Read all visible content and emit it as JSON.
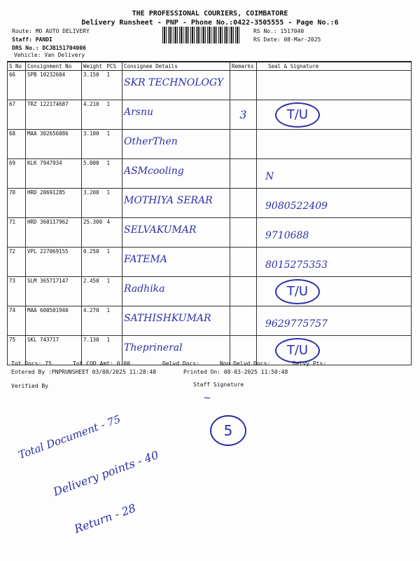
{
  "header": {
    "company": "THE PROFESSIONAL COURIERS, COIMBATORE",
    "subtitle": "Delivery Runsheet - PNP - Phone No.:0422-3505555 - Page No.:6",
    "route": "Route: MO AUTO DELIVERY",
    "staff": "Staff: PANDI",
    "drs_no": "DRS No.: DCJB151704006",
    "vehicle": "Vehicle: Van Delivery",
    "rs_no": "RS No.: 1517040",
    "rs_date": "RS Date: 08-Mar-2025"
  },
  "table": {
    "columns": [
      "S No",
      "Consignment No",
      "Weight",
      "PCS",
      "Consignee Details",
      "Remarks",
      "Seal & Signature"
    ],
    "rows": [
      {
        "sno": "66",
        "consignment": "SPB 10232604",
        "weight": "3.150",
        "pcs": "1",
        "consignee": "SKR TECHNOLOGY",
        "remarks": "",
        "seal": ""
      },
      {
        "sno": "67",
        "consignment": "TRZ 122174687",
        "weight": "4.210",
        "pcs": "1",
        "consignee": "Arsnu",
        "remarks": "3",
        "seal": "T/U"
      },
      {
        "sno": "68",
        "consignment": "MAA 302656086",
        "weight": "3.100",
        "pcs": "1",
        "consignee": "OtherThen",
        "remarks": "",
        "seal": ""
      },
      {
        "sno": "69",
        "consignment": "KLK 7947934",
        "weight": "5.000",
        "pcs": "1",
        "consignee": "ASMcooling",
        "remarks": "",
        "seal": "N"
      },
      {
        "sno": "70",
        "consignment": "HRD 20691285",
        "weight": "3.200",
        "pcs": "1",
        "consignee": "MOTHIYA SERAR",
        "remarks": "",
        "seal": "9080522409"
      },
      {
        "sno": "71",
        "consignment": "HRD 360117962",
        "weight": "25.300",
        "pcs": "4",
        "consignee": "SELVAKUMAR",
        "remarks": "",
        "seal": "9710688"
      },
      {
        "sno": "72",
        "consignment": "VPL 227069155",
        "weight": "0.250",
        "pcs": "1",
        "consignee": "FATEMA",
        "remarks": "",
        "seal": "8015275353"
      },
      {
        "sno": "73",
        "consignment": "SLM 365717147",
        "weight": "2.450",
        "pcs": "1",
        "consignee": "Radhika",
        "remarks": "",
        "seal": "T/U"
      },
      {
        "sno": "74",
        "consignment": "MAA 600501940",
        "weight": "4.270",
        "pcs": "1",
        "consignee": "SATHISHKUMAR",
        "remarks": "",
        "seal": "9629775757"
      },
      {
        "sno": "75",
        "consignment": "SKL 743717",
        "weight": "7.130",
        "pcs": "1",
        "consignee": "Theprineral",
        "remarks": "",
        "seal": "T/U"
      }
    ]
  },
  "footer": {
    "tot_docs": "Tot Docs:  75",
    "tot_cod": "Tot COD Amt:     0.00",
    "delvd": "Delvd Docs:",
    "non_delvd": "Non Delvd Docs:",
    "delvy_pts": "Delvy Pts:",
    "entered_by": "Entered By :PNPRUNSHEET 03/08/2025 11:28:48",
    "printed_on": "Printed On: 08-03-2025 11:50:48",
    "verified_by": "Verified By",
    "staff_signature": "Staff Signature"
  },
  "notes": {
    "total": "Total Document - 75",
    "delivery": "Delivery points - 40",
    "return": "Return - 28",
    "circle": "5"
  },
  "colors": {
    "ink": "#2b2fa8"
  }
}
